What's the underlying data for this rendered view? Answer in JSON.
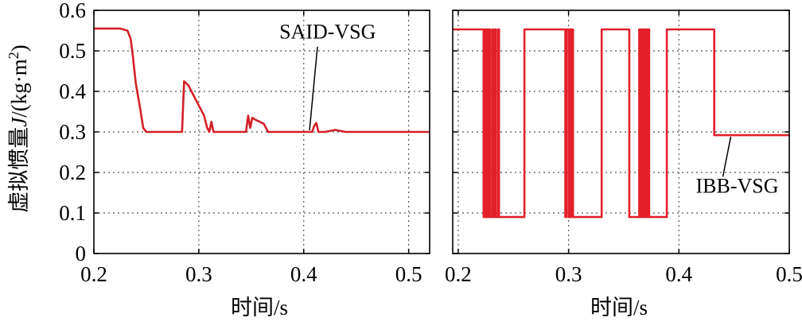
{
  "chart_data": [
    {
      "type": "line",
      "panel": "left",
      "ylabel": "虚拟惯量J/(kg·m²)",
      "ylabel_prefix": "虚拟惯量",
      "ylabel_symbol": "J",
      "ylabel_unit": "/(kg·m",
      "ylabel_sup": "2",
      "ylabel_close": ")",
      "xlabel": "时间/s",
      "xlim": [
        0.2,
        0.52
      ],
      "ylim": [
        0,
        0.6
      ],
      "xticks": [
        "0.2",
        "0.3",
        "0.4",
        "0.5"
      ],
      "xtick_values": [
        0.2,
        0.3,
        0.4,
        0.5
      ],
      "yticks": [
        "0",
        "0.1",
        "0.2",
        "0.3",
        "0.4",
        "0.5",
        "0.6"
      ],
      "ytick_values": [
        0,
        0.1,
        0.2,
        0.3,
        0.4,
        0.5,
        0.6
      ],
      "grid": true,
      "series": [
        {
          "name": "SAID-VSG",
          "color": "#d42027",
          "x": [
            0.2,
            0.225,
            0.232,
            0.235,
            0.237,
            0.24,
            0.244,
            0.247,
            0.25,
            0.284,
            0.286,
            0.29,
            0.295,
            0.3,
            0.305,
            0.308,
            0.31,
            0.312,
            0.314,
            0.316,
            0.345,
            0.347,
            0.349,
            0.351,
            0.354,
            0.358,
            0.362,
            0.364,
            0.366,
            0.408,
            0.41,
            0.412,
            0.414,
            0.42,
            0.43,
            0.44,
            0.52
          ],
          "y": [
            0.555,
            0.555,
            0.55,
            0.53,
            0.49,
            0.42,
            0.36,
            0.31,
            0.3,
            0.3,
            0.425,
            0.415,
            0.39,
            0.365,
            0.34,
            0.31,
            0.3,
            0.325,
            0.3,
            0.3,
            0.3,
            0.34,
            0.31,
            0.335,
            0.33,
            0.325,
            0.32,
            0.31,
            0.3,
            0.3,
            0.315,
            0.322,
            0.3,
            0.3,
            0.305,
            0.3,
            0.3
          ]
        }
      ],
      "annotation": {
        "text": "SAID-VSG",
        "point": [
          0.404,
          0.3
        ],
        "label_at": [
          0.4,
          0.53
        ]
      }
    },
    {
      "type": "line",
      "panel": "right",
      "xlabel": "时间/s",
      "xlim": [
        0.195,
        0.5
      ],
      "ylim": [
        0,
        0.6
      ],
      "xticks": [
        "0.2",
        "0.3",
        "0.4",
        "0.5"
      ],
      "xtick_values": [
        0.2,
        0.3,
        0.4,
        0.5
      ],
      "grid": true,
      "series": [
        {
          "name": "IBB-VSG",
          "color": "#e3202a",
          "high": 0.553,
          "low": 0.09,
          "final": 0.292,
          "switch_times": [
            0.223,
            0.224,
            0.225,
            0.226,
            0.227,
            0.228,
            0.229,
            0.231,
            0.232,
            0.233,
            0.234,
            0.236,
            0.237,
            0.26,
            0.297,
            0.298,
            0.3,
            0.301,
            0.302,
            0.303,
            0.304,
            0.33,
            0.355,
            0.364,
            0.365,
            0.366,
            0.367,
            0.368,
            0.369,
            0.37,
            0.371,
            0.372,
            0.373,
            0.389
          ],
          "final_start": 0.432
        }
      ],
      "annotation": {
        "text": "IBB-VSG",
        "point": [
          0.447,
          0.292
        ],
        "label_at": [
          0.46,
          0.15
        ]
      }
    }
  ]
}
